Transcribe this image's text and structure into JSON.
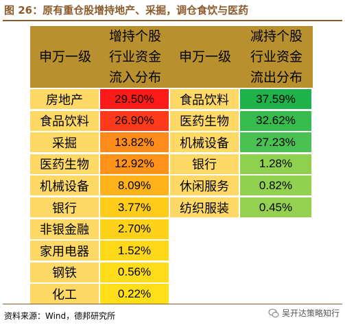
{
  "title": "图 26：原有重仓股增持地产、采掘，调仓食饮与医药",
  "headers": {
    "left_sector": "申万一级",
    "inflow": [
      "增持个股",
      "行业资金",
      "流入分布"
    ],
    "right_sector": "申万一级",
    "outflow": [
      "减持个股",
      "行业资金",
      "流出分布"
    ]
  },
  "inflow_rows": [
    {
      "sector": "房地产",
      "value": "29.50%",
      "color": "#ff1a1a"
    },
    {
      "sector": "食品饮料",
      "value": "26.90%",
      "color": "#ff3a1a"
    },
    {
      "sector": "采掘",
      "value": "13.82%",
      "color": "#ff8c1a"
    },
    {
      "sector": "医药生物",
      "value": "12.92%",
      "color": "#ff931a"
    },
    {
      "sector": "机械设备",
      "value": "8.09%",
      "color": "#ffb21a"
    },
    {
      "sector": "银行",
      "value": "3.77%",
      "color": "#ffcc1a"
    },
    {
      "sector": "非银金融",
      "value": "2.70%",
      "color": "#ffd21a"
    },
    {
      "sector": "家用电器",
      "value": "1.52%",
      "color": "#ffd81a"
    },
    {
      "sector": "钢铁",
      "value": "0.56%",
      "color": "#ffdd1a"
    },
    {
      "sector": "化工",
      "value": "0.22%",
      "color": "#ffdf1a"
    }
  ],
  "outflow_rows": [
    {
      "sector": "食品饮料",
      "value": "37.59%",
      "color": "#1fb24a"
    },
    {
      "sector": "医药生物",
      "value": "32.62%",
      "color": "#37bb4e"
    },
    {
      "sector": "机械设备",
      "value": "27.23%",
      "color": "#4cc153"
    },
    {
      "sector": "银行",
      "value": "1.28%",
      "color": "#8fd14f"
    },
    {
      "sector": "休闲服务",
      "value": "0.82%",
      "color": "#92d050"
    },
    {
      "sector": "纺织服装",
      "value": "0.45%",
      "color": "#94d150"
    }
  ],
  "source": "资料来源：Wind，德邦研究所",
  "watermark": "吴开达策略知行",
  "colors": {
    "header_bg": "#b8902d",
    "sector_bg": "#ffd966",
    "title_color": "#8a5a2b"
  }
}
